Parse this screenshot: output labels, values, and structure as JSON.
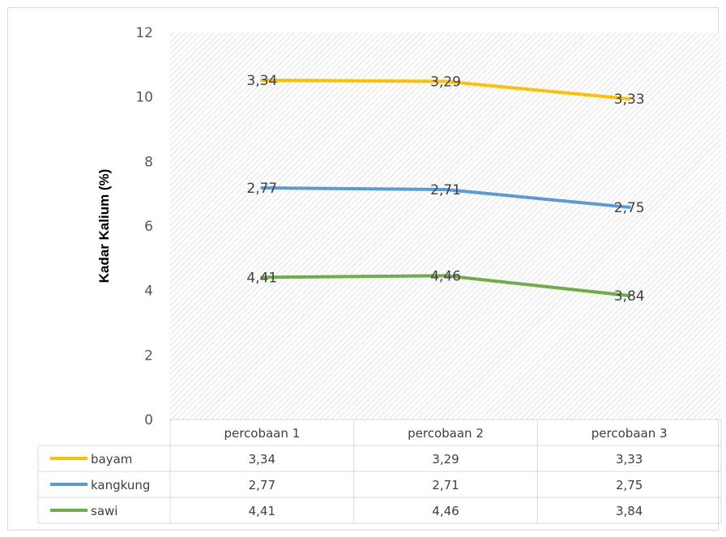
{
  "chart_data": {
    "type": "line",
    "title": "",
    "xlabel": "",
    "ylabel": "Kadar Kalium (%)",
    "ylim": [
      0,
      12
    ],
    "yticks": [
      0,
      2,
      4,
      6,
      8,
      10,
      12
    ],
    "categories": [
      "percobaan 1",
      "percobaan 2",
      "percobaan 3"
    ],
    "grid": false,
    "plot_background": "diagonal-hatch",
    "legend": "data-table-below",
    "series": [
      {
        "name": "bayam",
        "color": "#ffc000",
        "values": [
          10.52,
          10.48,
          9.94
        ],
        "data_labels": [
          "3,34",
          "3,29",
          "3,33"
        ],
        "table_values": [
          "3,34",
          "3,29",
          "3,33"
        ]
      },
      {
        "name": "kangkung",
        "color": "#5b9bd5",
        "values": [
          7.18,
          7.13,
          6.58
        ],
        "data_labels": [
          "2,77",
          "2,71",
          "2,75"
        ],
        "table_values": [
          "2,77",
          "2,71",
          "2,75"
        ]
      },
      {
        "name": "sawi",
        "color": "#70ad47",
        "values": [
          4.41,
          4.46,
          3.84
        ],
        "data_labels": [
          "4,41",
          "4,46",
          "3,84"
        ],
        "table_values": [
          "4,41",
          "4,46",
          "3,84"
        ]
      }
    ]
  }
}
